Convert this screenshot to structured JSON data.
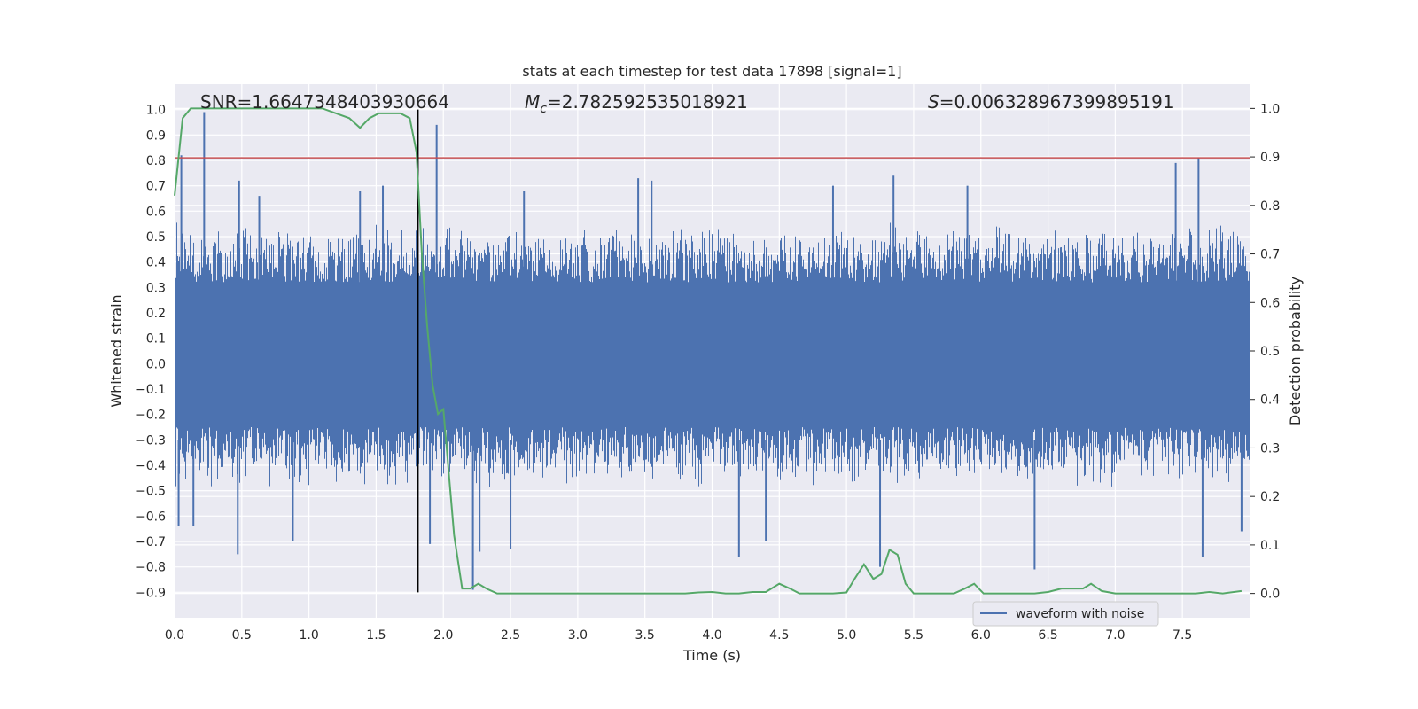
{
  "chart_data": {
    "type": "line",
    "title": "stats at each timestep for test data 17898 [signal=1]",
    "xlabel": "Time (s)",
    "ylabel": "Whitened strain",
    "y2label": "Detection probability",
    "xlim": [
      0.0,
      8.0
    ],
    "ylim": [
      -1.0,
      1.1
    ],
    "y2lim": [
      -0.05,
      1.05
    ],
    "xticks": [
      0.0,
      0.5,
      1.0,
      1.5,
      2.0,
      2.5,
      3.0,
      3.5,
      4.0,
      4.5,
      5.0,
      5.5,
      6.0,
      6.5,
      7.0,
      7.5
    ],
    "xtick_labels": [
      "0.0",
      "0.5",
      "1.0",
      "1.5",
      "2.0",
      "2.5",
      "3.0",
      "3.5",
      "4.0",
      "4.5",
      "5.0",
      "5.5",
      "6.0",
      "6.5",
      "7.0",
      "7.5"
    ],
    "yticks": [
      -0.9,
      -0.8,
      -0.7,
      -0.6,
      -0.5,
      -0.4,
      -0.3,
      -0.2,
      -0.1,
      0.0,
      0.1,
      0.2,
      0.3,
      0.4,
      0.5,
      0.6,
      0.7,
      0.8,
      0.9,
      1.0
    ],
    "ytick_labels": [
      "−0.9",
      "−0.8",
      "−0.7",
      "−0.6",
      "−0.5",
      "−0.4",
      "−0.3",
      "−0.2",
      "−0.1",
      "0.0",
      "0.1",
      "0.2",
      "0.3",
      "0.4",
      "0.5",
      "0.6",
      "0.7",
      "0.8",
      "0.9",
      "1.0"
    ],
    "y2ticks": [
      0.0,
      0.1,
      0.2,
      0.3,
      0.4,
      0.5,
      0.6,
      0.7,
      0.8,
      0.9,
      1.0
    ],
    "y2tick_labels": [
      "0.0",
      "0.1",
      "0.2",
      "0.3",
      "0.4",
      "0.5",
      "0.6",
      "0.7",
      "0.8",
      "0.9",
      "1.0"
    ],
    "grid": true,
    "legend_placement": "bottom-right",
    "legend": [
      {
        "label": "waveform with noise",
        "color": "#4c72b0"
      }
    ],
    "annotations": {
      "snr": "SNR=1.6647348403930664",
      "mc_symbol": "M",
      "mc_subscript": "c",
      "mc_value": "=2.782592535018921",
      "s_symbol": "S",
      "s_value": "=0.006328967399895191"
    },
    "series": [
      {
        "name": "waveform with noise",
        "axis": "left",
        "color": "#4c72b0",
        "band_core": [
          -0.25,
          0.32
        ],
        "band_outer": [
          -0.45,
          0.52
        ],
        "peaks": [
          {
            "x": 0.05,
            "y": 0.82
          },
          {
            "x": 0.22,
            "y": 0.99
          },
          {
            "x": 0.48,
            "y": 0.72
          },
          {
            "x": 0.63,
            "y": 0.66
          },
          {
            "x": 1.38,
            "y": 0.68
          },
          {
            "x": 1.55,
            "y": 0.7
          },
          {
            "x": 1.95,
            "y": 0.94
          },
          {
            "x": 2.6,
            "y": 0.68
          },
          {
            "x": 3.45,
            "y": 0.73
          },
          {
            "x": 3.55,
            "y": 0.72
          },
          {
            "x": 4.9,
            "y": 0.7
          },
          {
            "x": 5.35,
            "y": 0.74
          },
          {
            "x": 5.9,
            "y": 0.7
          },
          {
            "x": 7.45,
            "y": 0.79
          },
          {
            "x": 7.62,
            "y": 0.81
          }
        ],
        "troughs": [
          {
            "x": 0.03,
            "y": -0.64
          },
          {
            "x": 0.14,
            "y": -0.64
          },
          {
            "x": 0.47,
            "y": -0.75
          },
          {
            "x": 0.88,
            "y": -0.7
          },
          {
            "x": 1.9,
            "y": -0.71
          },
          {
            "x": 2.22,
            "y": -0.89
          },
          {
            "x": 2.27,
            "y": -0.74
          },
          {
            "x": 2.5,
            "y": -0.73
          },
          {
            "x": 4.2,
            "y": -0.76
          },
          {
            "x": 4.4,
            "y": -0.7
          },
          {
            "x": 5.25,
            "y": -0.8
          },
          {
            "x": 6.4,
            "y": -0.81
          },
          {
            "x": 7.65,
            "y": -0.76
          },
          {
            "x": 7.94,
            "y": -0.66
          }
        ]
      },
      {
        "name": "",
        "axis": "right",
        "color": "#55a868",
        "x": [
          0.0,
          0.06,
          0.12,
          0.2,
          0.4,
          0.6,
          0.8,
          1.0,
          1.1,
          1.2,
          1.3,
          1.38,
          1.45,
          1.52,
          1.6,
          1.68,
          1.75,
          1.8,
          1.84,
          1.88,
          1.92,
          1.96,
          2.0,
          2.04,
          2.08,
          2.14,
          2.2,
          2.26,
          2.32,
          2.4,
          2.6,
          2.8,
          3.0,
          3.2,
          3.4,
          3.6,
          3.8,
          3.9,
          4.0,
          4.1,
          4.2,
          4.3,
          4.4,
          4.5,
          4.58,
          4.65,
          4.8,
          4.9,
          5.0,
          5.06,
          5.13,
          5.2,
          5.26,
          5.32,
          5.38,
          5.44,
          5.5,
          5.6,
          5.8,
          5.88,
          5.95,
          6.02,
          6.2,
          6.4,
          6.5,
          6.6,
          6.7,
          6.76,
          6.82,
          6.9,
          7.0,
          7.2,
          7.4,
          7.5,
          7.6,
          7.7,
          7.8,
          7.94
        ],
        "y": [
          0.82,
          0.98,
          1.0,
          1.0,
          1.0,
          1.0,
          1.0,
          1.0,
          1.0,
          0.99,
          0.98,
          0.96,
          0.98,
          0.99,
          0.99,
          0.99,
          0.98,
          0.91,
          0.7,
          0.55,
          0.43,
          0.37,
          0.38,
          0.25,
          0.12,
          0.01,
          0.01,
          0.02,
          0.01,
          0.0,
          0.0,
          0.0,
          0.0,
          0.0,
          0.0,
          0.0,
          0.0,
          0.002,
          0.003,
          0.0,
          0.0,
          0.003,
          0.003,
          0.02,
          0.01,
          0.0,
          0.0,
          0.0,
          0.002,
          0.03,
          0.06,
          0.03,
          0.04,
          0.09,
          0.08,
          0.02,
          0.0,
          0.0,
          0.0,
          0.01,
          0.02,
          0.0,
          0.0,
          0.0,
          0.003,
          0.01,
          0.01,
          0.01,
          0.02,
          0.005,
          0.0,
          0.0,
          0.0,
          0.0,
          0.0,
          0.003,
          0.0,
          0.005
        ]
      }
    ],
    "hlines": [
      {
        "axis": "left",
        "y": 0.81,
        "color": "#c44e52"
      }
    ],
    "vlines": [
      {
        "x": 1.81,
        "ymin": -0.9,
        "ymax": 1.0,
        "color": "#000000"
      }
    ]
  }
}
